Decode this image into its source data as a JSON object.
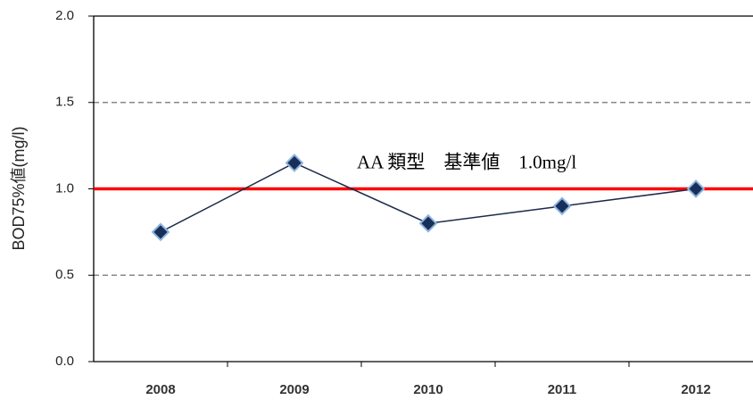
{
  "chart_data": {
    "type": "line",
    "y_label": "BOD75%値(mg/l)",
    "categories": [
      "2008",
      "2009",
      "2010",
      "2011",
      "2012"
    ],
    "values": [
      0.75,
      1.15,
      0.8,
      0.9,
      1.0
    ],
    "color": "#1c2a4a",
    "marker_color": "#17305a",
    "ylim": [
      0,
      2
    ],
    "yticks": [
      {
        "value": 0,
        "label": "0.0"
      },
      0.5,
      {
        "value": 1,
        "label": "1.0"
      },
      1.5,
      {
        "value": 2,
        "label": "2.0"
      }
    ],
    "grid": true,
    "reference_line": {
      "value": 1.0,
      "color": "#ff0000",
      "label": "AA 類型　基準値　1.0mg/l"
    }
  }
}
